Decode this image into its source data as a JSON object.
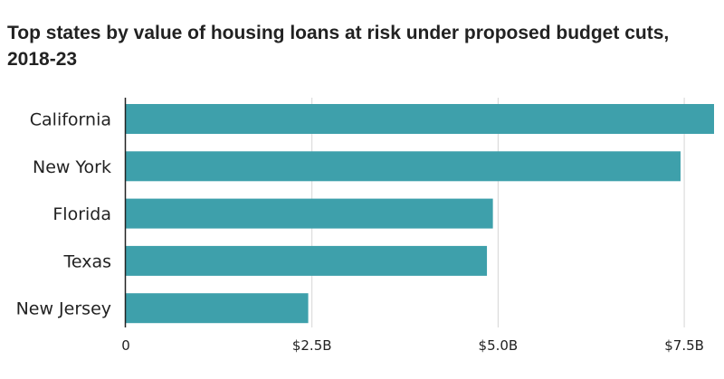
{
  "colors": {
    "bar": "#3ea0ab",
    "grid": "#d6d6d6",
    "axis": "#222222"
  },
  "chart_data": {
    "type": "bar",
    "orientation": "horizontal",
    "title": "Top states by value of housing loans at risk under proposed budget cuts, 2018-23",
    "categories": [
      "California",
      "New York",
      "Florida",
      "Texas",
      "New Jersey"
    ],
    "values": [
      7.9,
      7.45,
      4.93,
      4.85,
      2.45
    ],
    "unit": "billion USD",
    "xlim": [
      0,
      7.9
    ],
    "xticks": [
      0,
      2.5,
      5.0,
      7.5
    ],
    "xtick_labels": [
      "0",
      "$2.5B",
      "$5.0B",
      "$7.5B"
    ],
    "grid": true,
    "legend": "none"
  }
}
